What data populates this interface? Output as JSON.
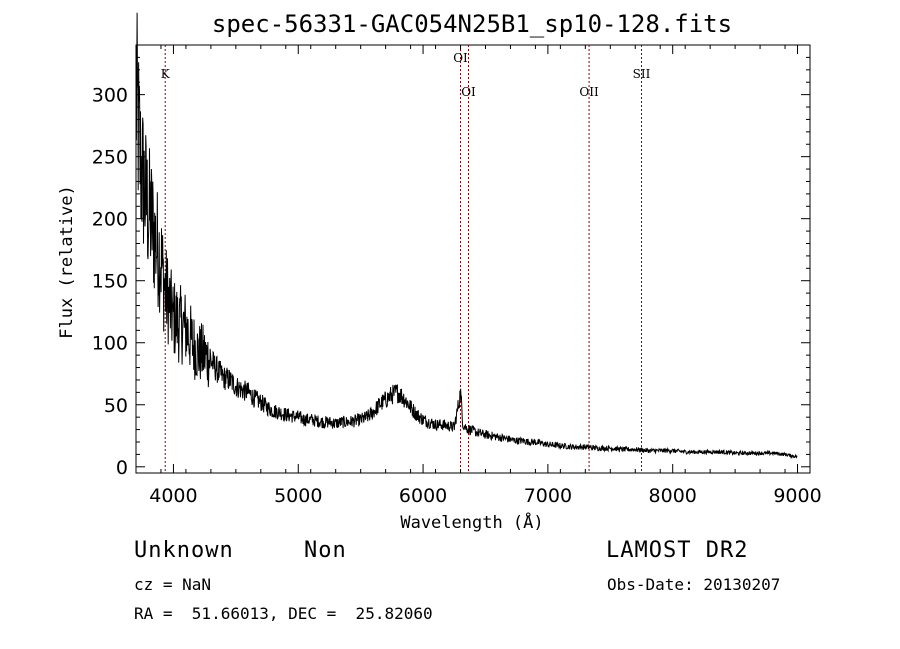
{
  "chart_data": {
    "type": "line",
    "title": "spec-56331-GAC054N25B1_sp10-128.fits",
    "xlabel": "Wavelength (Å)",
    "ylabel": "Flux (relative)",
    "xlim": [
      3700,
      9100
    ],
    "ylim": [
      -5,
      340
    ],
    "xticks": [
      4000,
      5000,
      6000,
      7000,
      8000,
      9000
    ],
    "yticks": [
      0,
      50,
      100,
      150,
      200,
      250,
      300
    ],
    "grid": false,
    "line_color": "#000000",
    "marker_color": "#8b0000",
    "series": [
      {
        "x": [
          3700,
          3720,
          3740,
          3760,
          3780,
          3800,
          3820,
          3840,
          3860,
          3880,
          3900,
          3920,
          3940,
          3960,
          3980,
          4000,
          4050,
          4100,
          4150,
          4200,
          4250,
          4300,
          4350,
          4400,
          4450,
          4500,
          4550,
          4600,
          4650,
          4700,
          4750,
          4800,
          4850,
          4900,
          4950,
          5000,
          5050,
          5100,
          5150,
          5200,
          5250,
          5300,
          5350,
          5400,
          5450,
          5500,
          5550,
          5600,
          5650,
          5700,
          5750,
          5800,
          5850,
          5900,
          5950,
          6000,
          6050,
          6100,
          6150,
          6200,
          6250,
          6280,
          6300,
          6320,
          6350,
          6400,
          6450,
          6500,
          6550,
          6600,
          6650,
          6700,
          6750,
          6800,
          6850,
          6900,
          6950,
          7000,
          7100,
          7200,
          7300,
          7400,
          7500,
          7600,
          7700,
          7800,
          7900,
          8000,
          8100,
          8200,
          8300,
          8400,
          8500,
          8600,
          8700,
          8800,
          8900,
          9000
        ],
        "y": [
          300,
          270,
          240,
          230,
          215,
          205,
          200,
          190,
          180,
          175,
          168,
          150,
          140,
          135,
          125,
          120,
          115,
          112,
          100,
          92,
          90,
          85,
          78,
          72,
          70,
          65,
          62,
          60,
          55,
          52,
          48,
          45,
          44,
          42,
          41,
          40,
          38,
          38,
          37,
          36,
          36,
          35,
          36,
          36,
          37,
          38,
          40,
          44,
          50,
          54,
          58,
          60,
          55,
          48,
          42,
          38,
          36,
          34,
          34,
          33,
          32,
          48,
          60,
          34,
          31,
          29,
          27,
          26,
          25,
          24,
          23,
          22,
          21,
          21,
          20,
          20,
          19,
          18,
          17,
          16,
          16,
          15,
          15,
          14,
          14,
          13,
          13,
          13,
          12,
          12,
          12,
          12,
          11,
          11,
          11,
          11,
          10,
          8
        ]
      }
    ],
    "lines": [
      {
        "label": "K",
        "x": 3934
      },
      {
        "label": "OI",
        "x": 6300
      },
      {
        "label": "OI",
        "x": 6364
      },
      {
        "label": "OII",
        "x": 7330
      },
      {
        "label": "SII",
        "x": 7750
      }
    ]
  },
  "info": {
    "object_class": "Unknown",
    "subclass": "Non",
    "survey": "LAMOST DR2",
    "cz": "cz = NaN",
    "obs_date": "Obs-Date: 20130207",
    "coords": "RA =  51.66013, DEC =  25.82060"
  }
}
